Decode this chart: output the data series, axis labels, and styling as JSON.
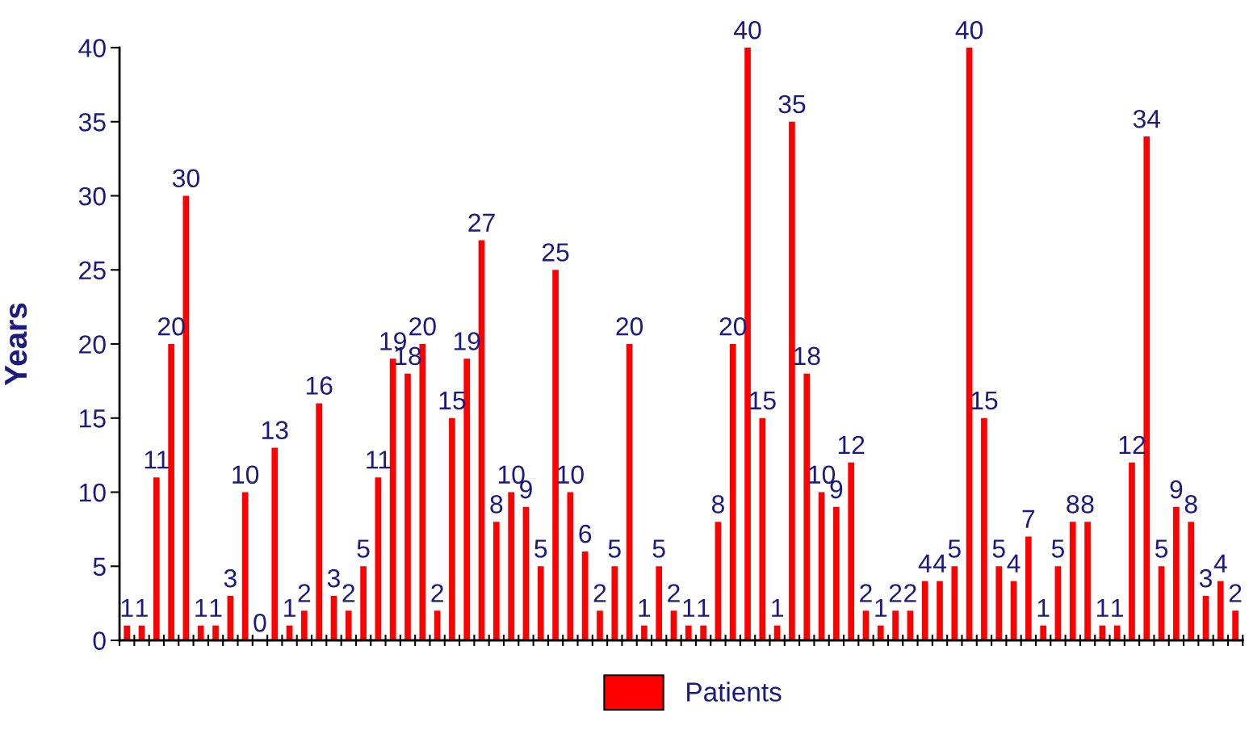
{
  "chart_data": {
    "type": "bar",
    "ylabel": "Years",
    "categories": [
      null,
      null,
      null,
      null,
      null,
      null,
      null,
      null,
      null,
      null,
      null,
      null,
      null,
      null,
      null,
      null,
      null,
      null,
      null,
      null,
      null,
      null,
      null,
      null,
      null,
      null,
      null,
      null,
      null,
      null,
      null,
      null,
      null,
      null,
      null,
      null,
      null,
      null,
      null,
      null,
      null,
      null,
      null,
      null,
      null,
      null,
      null,
      null,
      null,
      null,
      null,
      null,
      null,
      null,
      null,
      null,
      null,
      null,
      null,
      null,
      null,
      null,
      null,
      null,
      null,
      null,
      null,
      null,
      null,
      null,
      null,
      null,
      null,
      null,
      null,
      null
    ],
    "series": [
      {
        "name": "Patients",
        "color": "#ff0000",
        "values": [
          1,
          1,
          11,
          20,
          30,
          1,
          1,
          3,
          10,
          0,
          13,
          1,
          2,
          16,
          3,
          2,
          5,
          11,
          19,
          18,
          20,
          2,
          15,
          19,
          27,
          8,
          10,
          9,
          5,
          25,
          10,
          6,
          2,
          5,
          20,
          1,
          5,
          2,
          1,
          1,
          8,
          20,
          40,
          15,
          1,
          35,
          18,
          10,
          9,
          12,
          2,
          1,
          2,
          2,
          4,
          4,
          5,
          40,
          15,
          5,
          4,
          7,
          1,
          5,
          8,
          8,
          1,
          1,
          12,
          34,
          5,
          9,
          8,
          3,
          4,
          2
        ]
      }
    ],
    "ylim": [
      0,
      40
    ],
    "yticks": [
      0,
      5,
      10,
      15,
      20,
      25,
      30,
      35,
      40
    ],
    "data_labels": true,
    "legend": "bottom",
    "grid": false
  }
}
